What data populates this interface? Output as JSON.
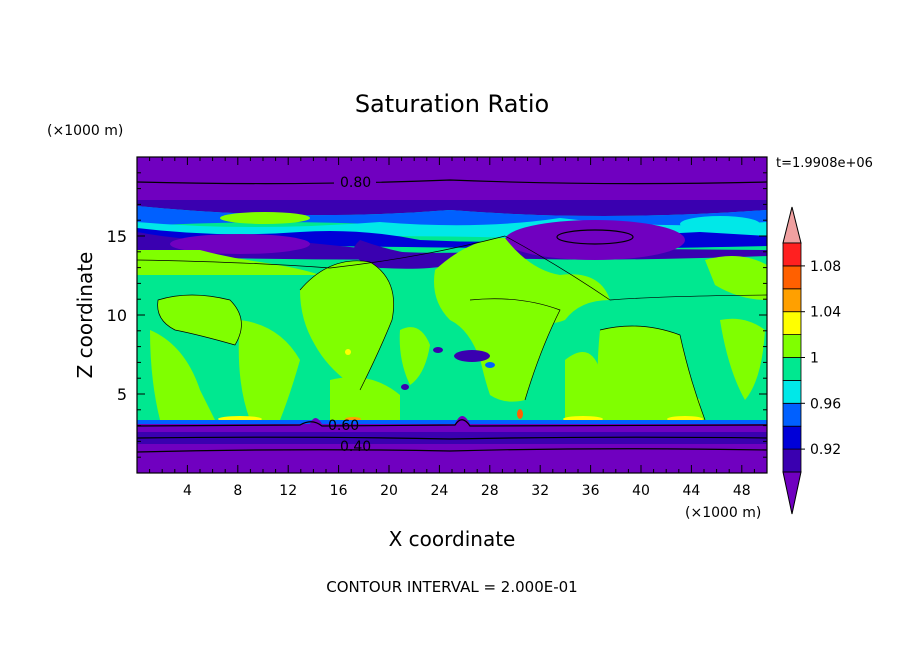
{
  "chart_data": {
    "type": "heatmap",
    "title": "Saturation Ratio",
    "xlabel": "X coordinate",
    "ylabel": "Z coordinate",
    "x_unit": "(×1000 m)",
    "y_unit": "(×1000 m)",
    "time_label": "t=1.9908e+06",
    "footer": "CONTOUR INTERVAL = 2.000E-01",
    "xlim": [
      0,
      50
    ],
    "ylim": [
      0,
      20
    ],
    "x_ticks": [
      4,
      8,
      12,
      16,
      20,
      24,
      28,
      32,
      36,
      40,
      44,
      48
    ],
    "y_ticks": [
      5,
      10,
      15
    ],
    "contour_labels": [
      "0.80",
      "0.60",
      "0.40"
    ],
    "colorbar": {
      "levels": [
        0.9,
        0.92,
        0.94,
        0.96,
        0.98,
        1.0,
        1.02,
        1.04,
        1.06,
        1.08,
        1.1
      ],
      "tick_labels": [
        "0.92",
        "0.96",
        "1",
        "1.04",
        "1.08"
      ],
      "colors": [
        "#7000c0",
        "#3a00b0",
        "#0000d8",
        "#0060ff",
        "#00e8e8",
        "#00e890",
        "#80ff00",
        "#ffff00",
        "#ffa000",
        "#ff6000",
        "#ff2020",
        "#f0a0a0"
      ]
    }
  }
}
